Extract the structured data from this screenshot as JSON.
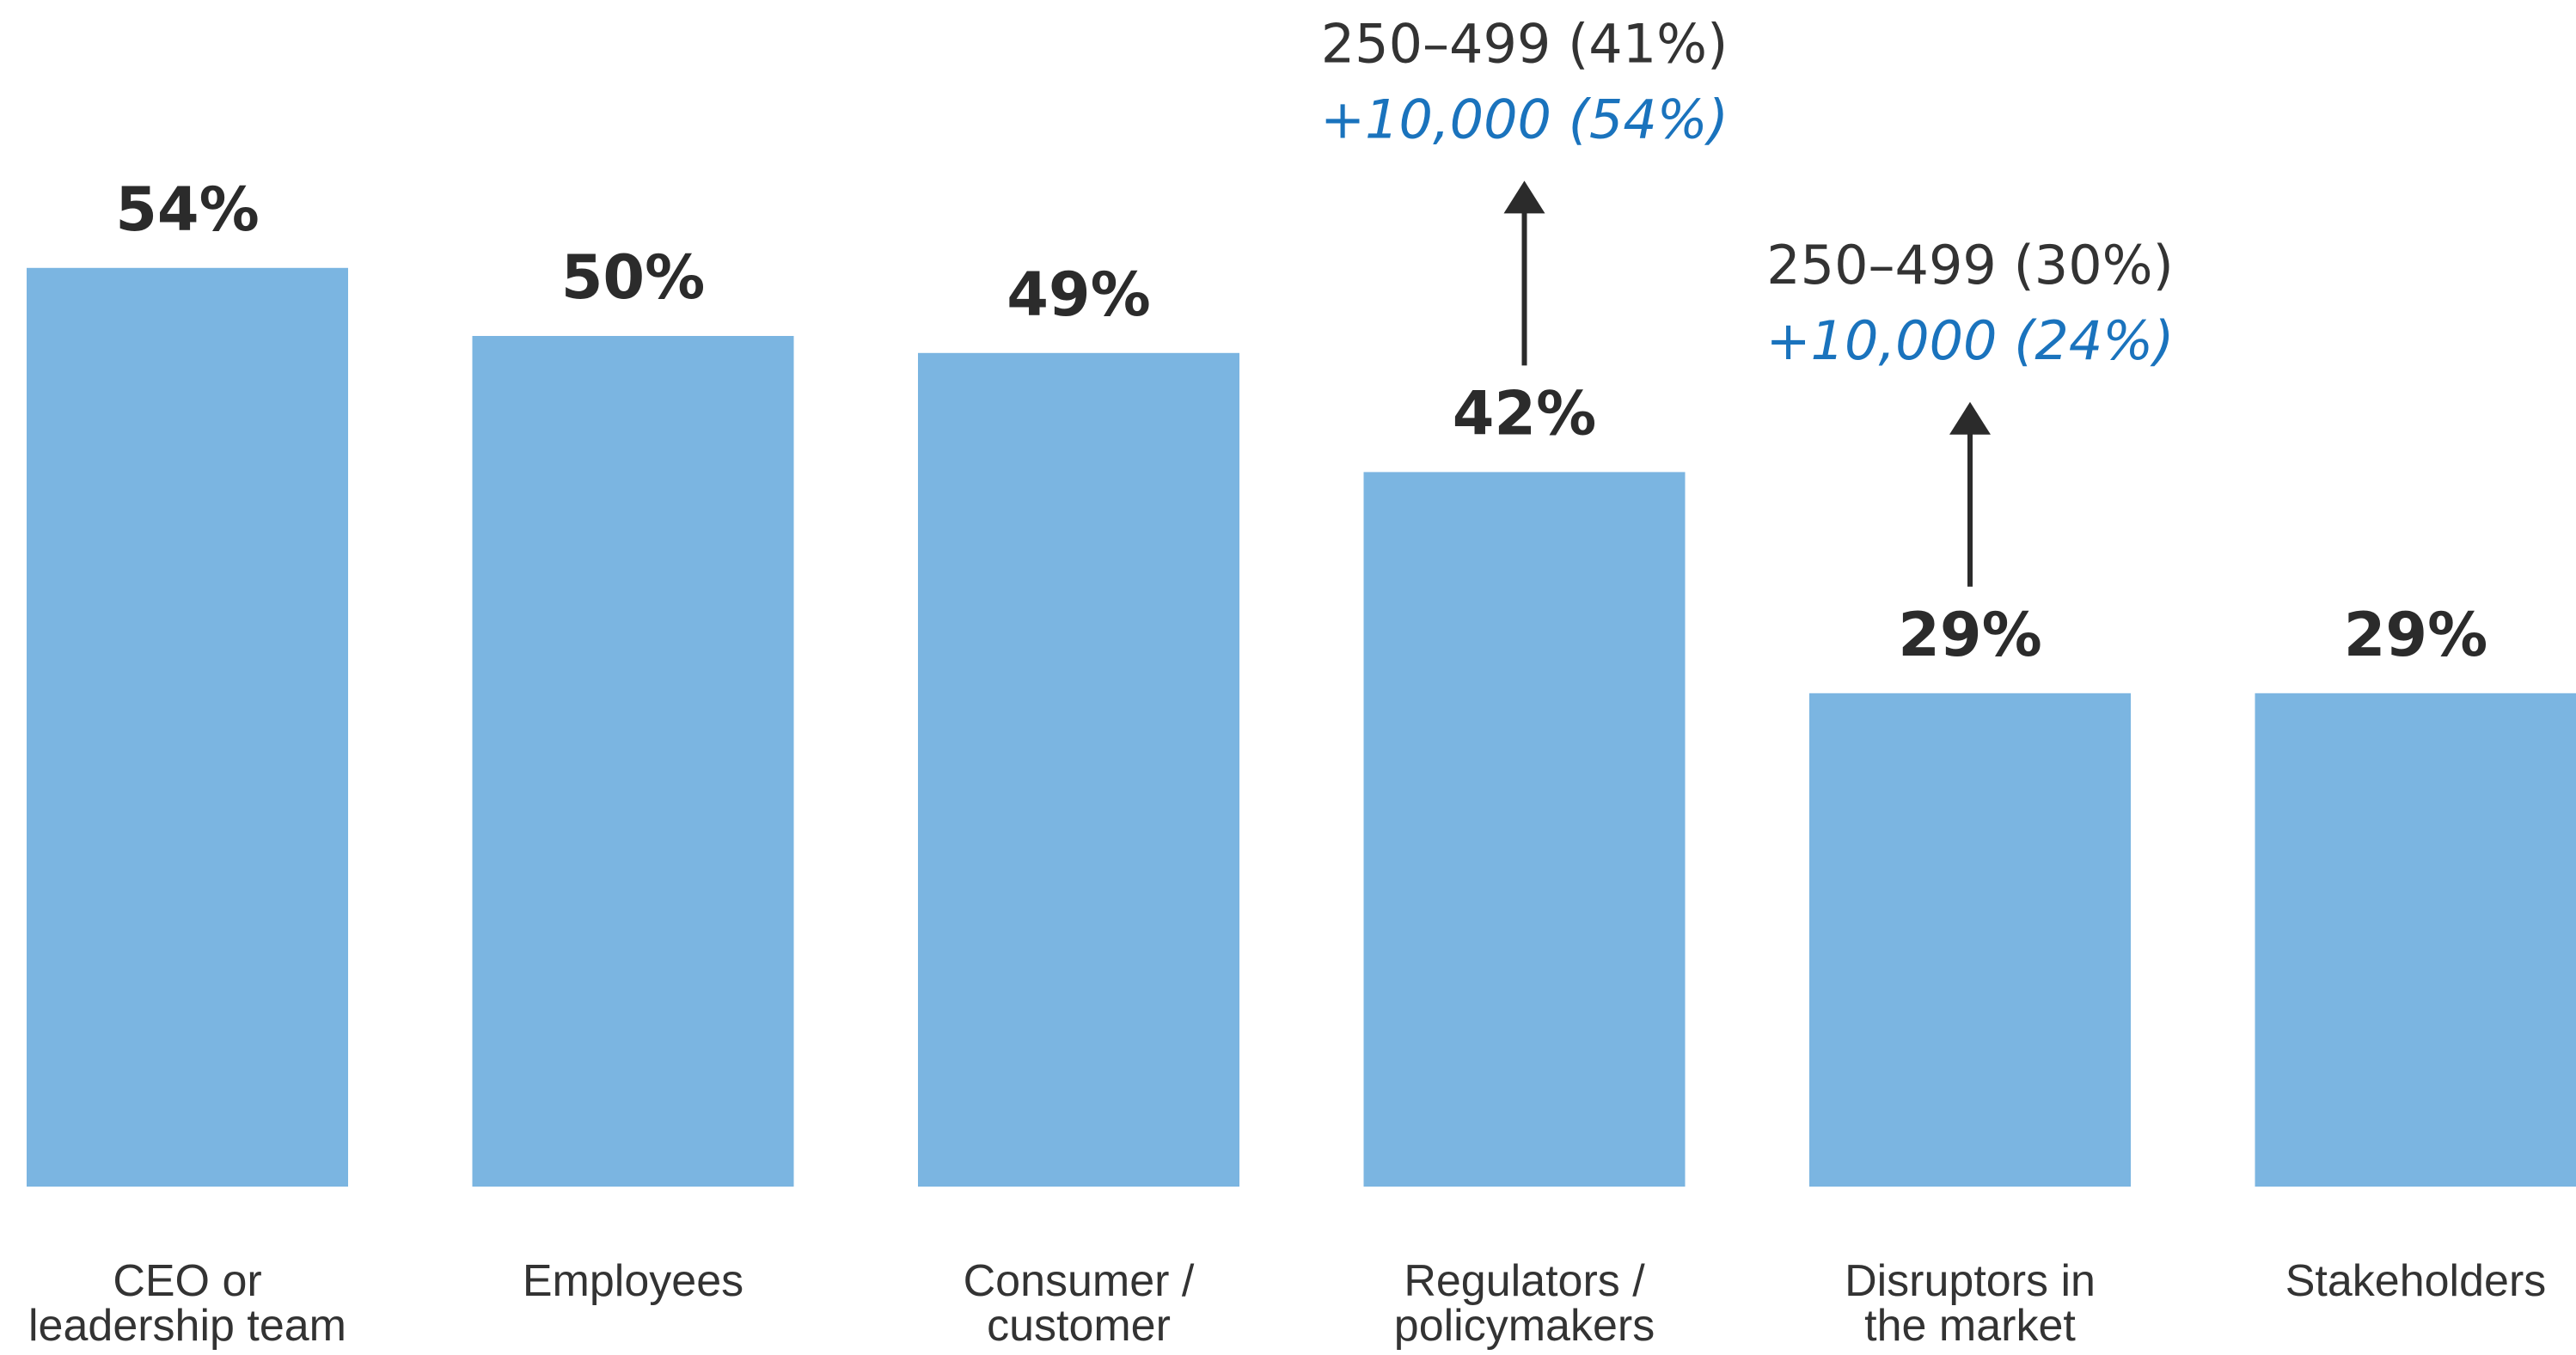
{
  "chart_data": {
    "type": "bar",
    "categories": [
      [
        "CEO or",
        "leadership team"
      ],
      [
        "Employees"
      ],
      [
        "Consumer /",
        "customer"
      ],
      [
        "Regulators /",
        "policymakers"
      ],
      [
        "Disruptors in",
        "the market"
      ],
      [
        "Stakeholders"
      ]
    ],
    "values": [
      54,
      50,
      49,
      42,
      29,
      29
    ],
    "value_labels": [
      "54%",
      "50%",
      "49%",
      "42%",
      "29%",
      "29%"
    ],
    "ylim": [
      0,
      100
    ],
    "grid": false,
    "annotations": [
      {
        "category_index": 3,
        "line1": "250–499 (41%)",
        "line2": "+10,000 (54%)"
      },
      {
        "category_index": 4,
        "line1": "250–499 (30%)",
        "line2": "+10,000 (24%)"
      }
    ]
  },
  "colors": {
    "bar": "#7bb5e1",
    "value_text": "#2b2b2b",
    "category_text": "#333333",
    "annotation_text": "#333333",
    "annotation_highlight": "#1a73bd",
    "arrow": "#2b2b2b"
  }
}
